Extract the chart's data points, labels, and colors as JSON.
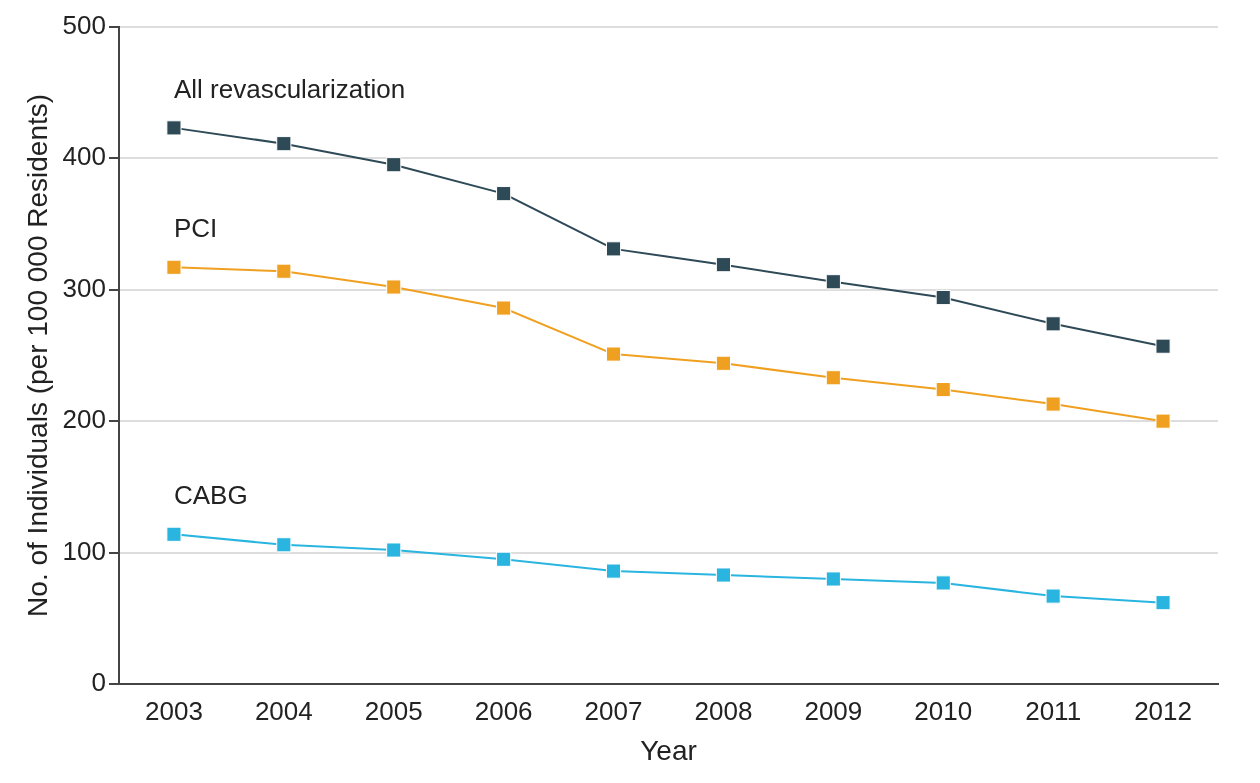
{
  "chart_data": {
    "type": "line",
    "xlabel": "Year",
    "ylabel": "No. of Individuals (per 100 000 Residents)",
    "categories": [
      "2003",
      "2004",
      "2005",
      "2006",
      "2007",
      "2008",
      "2009",
      "2010",
      "2011",
      "2012"
    ],
    "series": [
      {
        "name": "All revascularization",
        "color": "#2e4a57",
        "values": [
          423,
          411,
          395,
          373,
          331,
          319,
          306,
          294,
          274,
          257
        ]
      },
      {
        "name": "PCI",
        "color": "#f0a020",
        "values": [
          317,
          314,
          302,
          286,
          251,
          244,
          233,
          224,
          213,
          200
        ]
      },
      {
        "name": "CABG",
        "color": "#29b5e0",
        "values": [
          114,
          106,
          102,
          95,
          86,
          83,
          80,
          77,
          67,
          62
        ]
      }
    ],
    "ylim": [
      0,
      500
    ],
    "yticks": [
      0,
      100,
      200,
      300,
      400,
      500
    ],
    "grid": "y",
    "legend": false,
    "marker": "square",
    "line_style": "solid"
  }
}
